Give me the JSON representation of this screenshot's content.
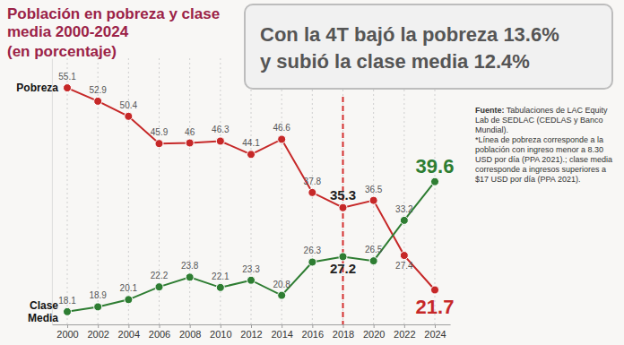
{
  "chart_data": {
    "type": "line",
    "title": "Población en pobreza y clase media 2000-2024",
    "subtitle": "(en porcentaje)",
    "headline": [
      "Con la 4T bajó la pobreza 13.6%",
      "y subió la clase media 12.4%"
    ],
    "source": "Fuente: Tabulaciones de LAC Equity Lab de SEDLAC (CEDLAS y Banco Mundial).",
    "note": "*Línea de pobreza corresponde a la población con ingreso menor a 8.30 USD por día (PPA 2021).; clase media corresponde a ingresos superiores a $17 USD por día (PPA 2021).",
    "x": [
      2000,
      2002,
      2004,
      2006,
      2008,
      2010,
      2012,
      2014,
      2016,
      2018,
      2020,
      2022,
      2024
    ],
    "xlim": [
      1999,
      2025
    ],
    "xticks": [
      2000,
      2002,
      2004,
      2006,
      2008,
      2010,
      2012,
      2014,
      2016,
      2018,
      2020,
      2022,
      2024
    ],
    "ylim": [
      16,
      60
    ],
    "tick_labels": "x",
    "grid": true,
    "data_labels": true,
    "marker": "circle",
    "reference_line": {
      "x": 2018
    },
    "series": [
      {
        "name": "Pobreza",
        "color": "#c62828",
        "values": [
          55.1,
          52.9,
          50.4,
          45.9,
          46,
          46.3,
          44.1,
          46.6,
          37.8,
          35.3,
          36.5,
          27.4,
          21.7
        ]
      },
      {
        "name": "Clase Media",
        "color": "#2e7d32",
        "values": [
          18.1,
          18.9,
          20.1,
          22.2,
          23.8,
          22.1,
          23.3,
          20.8,
          26.3,
          27.2,
          26.5,
          33.2,
          39.6
        ]
      }
    ]
  }
}
